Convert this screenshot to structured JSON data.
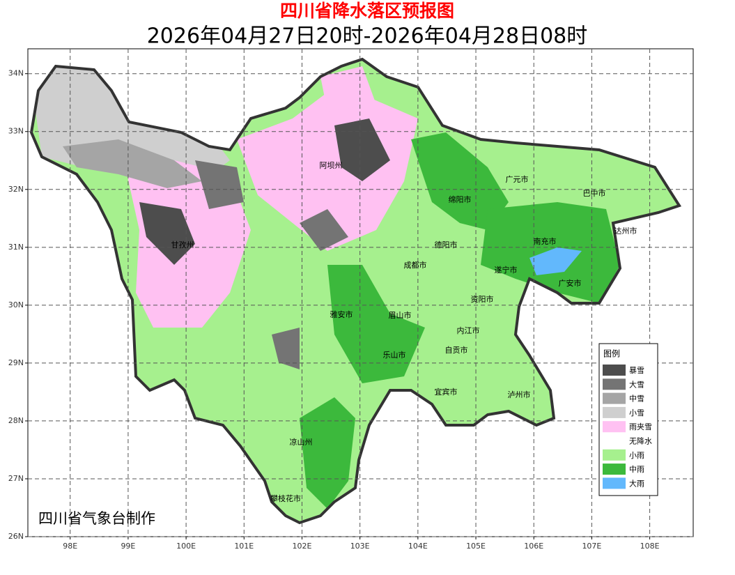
{
  "header": {
    "title": "四川省降水落区预报图",
    "subtitle": "2026年04月27日20时-2026年04月28日08时"
  },
  "map": {
    "xlim": [
      97.27,
      108.75
    ],
    "ylim": [
      26,
      34.43
    ],
    "xticks": [
      {
        "value": 98,
        "label": "98E"
      },
      {
        "value": 99,
        "label": "99E"
      },
      {
        "value": 100,
        "label": "100E"
      },
      {
        "value": 101,
        "label": "101E"
      },
      {
        "value": 102,
        "label": "102E"
      },
      {
        "value": 103,
        "label": "103E"
      },
      {
        "value": 104,
        "label": "104E"
      },
      {
        "value": 105,
        "label": "105E"
      },
      {
        "value": 106,
        "label": "106E"
      },
      {
        "value": 107,
        "label": "107E"
      },
      {
        "value": 108,
        "label": "108E"
      }
    ],
    "yticks": [
      {
        "value": 26,
        "label": "26N"
      },
      {
        "value": 27,
        "label": "27N"
      },
      {
        "value": 28,
        "label": "28N"
      },
      {
        "value": 29,
        "label": "29N"
      },
      {
        "value": 30,
        "label": "30N"
      },
      {
        "value": 31,
        "label": "31N"
      },
      {
        "value": 32,
        "label": "32N"
      },
      {
        "value": 33,
        "label": "33N"
      },
      {
        "value": 34,
        "label": "34N"
      }
    ],
    "cities": [
      "阿坝州",
      "广元市",
      "巴中市",
      "绵阳市",
      "达州市",
      "南充市",
      "甘孜州",
      "德阳市",
      "成都市",
      "遂宁市",
      "广安市",
      "资阳市",
      "雅安市",
      "眉山市",
      "内江市",
      "自贡市",
      "乐山市",
      "宜宾市",
      "泸州市",
      "凉山州",
      "攀枝花市"
    ],
    "credit": "四川省气象台制作"
  },
  "legend": {
    "title": "图例",
    "items": [
      {
        "label": "暴雪",
        "color": "#4d4d4d"
      },
      {
        "label": "大雪",
        "color": "#747474"
      },
      {
        "label": "中雪",
        "color": "#a5a5a5"
      },
      {
        "label": "小雪",
        "color": "#cfcfcf"
      },
      {
        "label": "雨夹雪",
        "color": "#ffc1f2"
      },
      {
        "label": "无降水",
        "color": "#ffffff"
      },
      {
        "label": "小雨",
        "color": "#a6f08e"
      },
      {
        "label": "中雨",
        "color": "#3cb93c"
      },
      {
        "label": "大雨",
        "color": "#62b8fc"
      }
    ]
  }
}
